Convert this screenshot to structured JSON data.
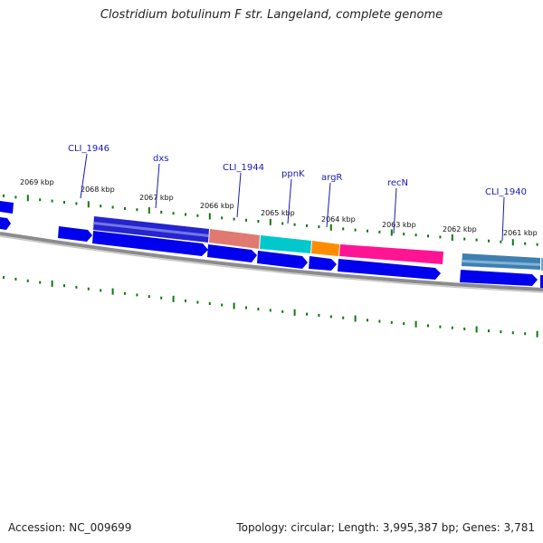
{
  "title": "Clostridium botulinum F str. Langeland, complete genome",
  "footer": {
    "accession": "Accession: NC_009699",
    "topology": "Topology: circular; Length: 3,995,387 bp; Genes: 3,781"
  },
  "kbp_labels": [
    "2069 kbp",
    "2068 kbp",
    "2067 kbp",
    "2066 kbp",
    "2065 kbp",
    "2064 kbp",
    "2063 kbp",
    "2062 kbp",
    "2061 kbp"
  ],
  "gene_labels": [
    "CLI_1946",
    "dxs",
    "CLI_1944",
    "ppnK",
    "argR",
    "recN",
    "CLI_1940"
  ],
  "colors": {
    "cds": "#0000ee",
    "dxs": "#2b2bd0",
    "cli1944": "#e07a70",
    "ppnk": "#00c8cc",
    "argr": "#ff8c00",
    "recn": "#ff1493",
    "cli1940": "#3f7fb0",
    "tick": "#117711",
    "backbone": "#8c8c8c"
  }
}
